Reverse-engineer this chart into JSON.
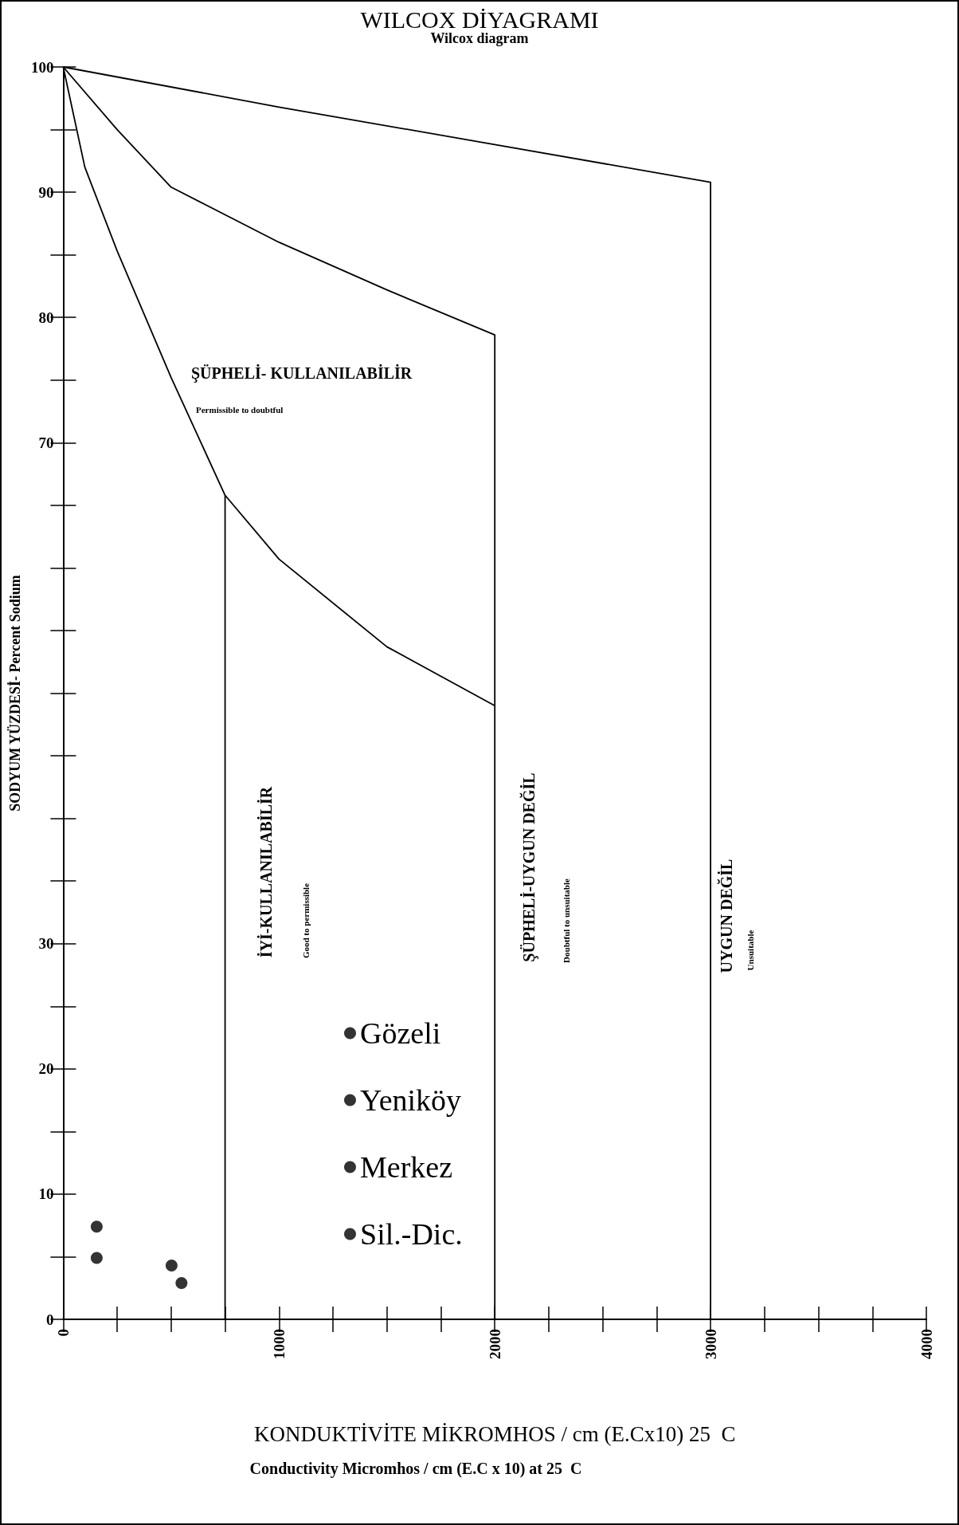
{
  "chart_data": {
    "type": "scatter",
    "title": "WILCOX DİYAGRAMI",
    "subtitle": "Wilcox diagram",
    "xlabel": "KONDUKTİVİTE MİKROMHOS / cm (E.Cx10) 25  C",
    "ylabel": "SODYUM YÜZDESİ- Percent Sodium",
    "xlim": [
      0,
      4000
    ],
    "ylim": [
      0,
      100
    ],
    "xticks": [
      0,
      {
        "value": 250,
        "label": null
      },
      {
        "value": 500,
        "label": null
      },
      {
        "value": 750,
        "label": null
      },
      1000,
      {
        "value": 1250,
        "label": null
      },
      {
        "value": 1500,
        "label": null
      },
      {
        "value": 1750,
        "label": null
      },
      2000,
      {
        "value": 2250,
        "label": null
      },
      {
        "value": 2500,
        "label": null
      },
      {
        "value": 2750,
        "label": null
      },
      3000,
      {
        "value": 3250,
        "label": null
      },
      {
        "value": 3500,
        "label": null
      },
      {
        "value": 3750,
        "label": null
      },
      4000
    ],
    "yticks": [
      0,
      {
        "value": 5,
        "label": null
      },
      10,
      {
        "value": 15,
        "label": null
      },
      20,
      {
        "value": 25,
        "label": null
      },
      30,
      {
        "value": 35,
        "label": null
      },
      {
        "value": 40,
        "label": null
      },
      {
        "value": 45,
        "label": null
      },
      {
        "value": 50,
        "label": null
      },
      {
        "value": 55,
        "label": null
      },
      {
        "value": 60,
        "label": null
      },
      {
        "value": 65,
        "label": null
      },
      70,
      {
        "value": 75,
        "label": null
      },
      80,
      {
        "value": 85,
        "label": null
      },
      90,
      {
        "value": 95,
        "label": null
      },
      100
    ],
    "grid": false,
    "legend": "bottom",
    "marker": "circle",
    "series": [
      {
        "type": "line",
        "marker": "none",
        "color": "#000000",
        "x": [
          0,
          1000,
          2000,
          3000,
          3000
        ],
        "values": [
          100,
          96.8,
          93.8,
          90.8,
          0
        ]
      },
      {
        "type": "line",
        "marker": "none",
        "color": "#000000",
        "x": [
          0,
          250,
          500,
          1000,
          1500,
          2000,
          2000
        ],
        "values": [
          100,
          95,
          90.4,
          86,
          82.2,
          78.6,
          0
        ]
      },
      {
        "type": "line",
        "marker": "none",
        "color": "#000000",
        "x": [
          0,
          100,
          250,
          500,
          750,
          750,
          750,
          1000,
          1500,
          2000
        ],
        "values": [
          100,
          92,
          85.3,
          75.2,
          65.8,
          0,
          65.8,
          60.7,
          53.7,
          49
        ]
      },
      {
        "name": "Gözeli",
        "color": "#000000",
        "x": [
          155
        ],
        "values": [
          7.4
        ]
      },
      {
        "name": "Yeniköy",
        "color": "#000000",
        "x": [
          155
        ],
        "values": [
          4.9
        ]
      },
      {
        "name": "Merkez",
        "color": "#000000",
        "x": [
          502
        ],
        "values": [
          4.3
        ]
      },
      {
        "name": "Sil.-Dic.",
        "color": "#000000",
        "x": [
          548
        ],
        "values": [
          2.9
        ]
      }
    ],
    "annotations": [
      "ŞÜPHELİ- KULLANILABİLİR",
      "Permissible to doubtful",
      "İYİ-KULLANILABİLİR",
      "Good to permissible",
      "ŞÜPHELİ-UYGUN DEĞİL",
      "Doubtful to unsuitable",
      "UYGUN DEĞİL",
      "Unsuitable",
      "Conductivity Micromhos / cm (E.C x 10) at 25  C"
    ]
  }
}
